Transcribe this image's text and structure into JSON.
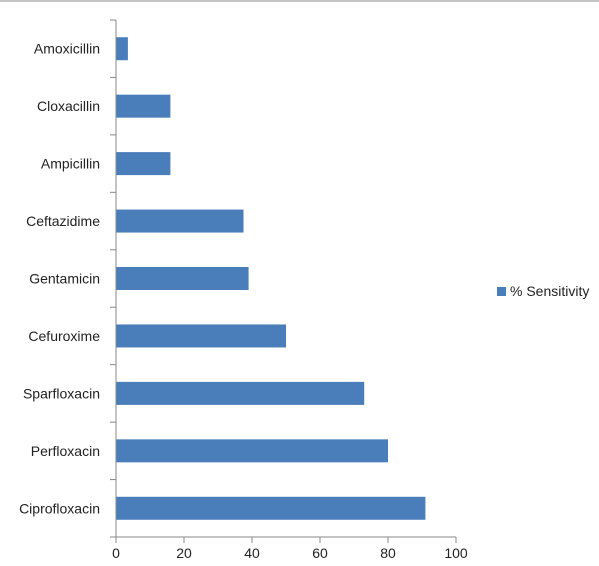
{
  "chart_data": {
    "type": "bar",
    "orientation": "horizontal",
    "categories": [
      "Amoxicillin",
      "Cloxacillin",
      "Ampicillin",
      "Ceftazidime",
      "Gentamicin",
      "Cefuroxime",
      "Sparfloxacin",
      "Perfloxacin",
      "Ciprofloxacin"
    ],
    "series": [
      {
        "name": "% Sensitivity",
        "values": [
          3.5,
          16,
          16,
          37.5,
          39,
          50,
          73,
          80,
          91
        ],
        "color": "#4a7ebb"
      }
    ],
    "xlim": [
      0,
      100
    ],
    "xticks": [
      0,
      20,
      40,
      60,
      80,
      100
    ],
    "grid": false,
    "legend": "right"
  }
}
